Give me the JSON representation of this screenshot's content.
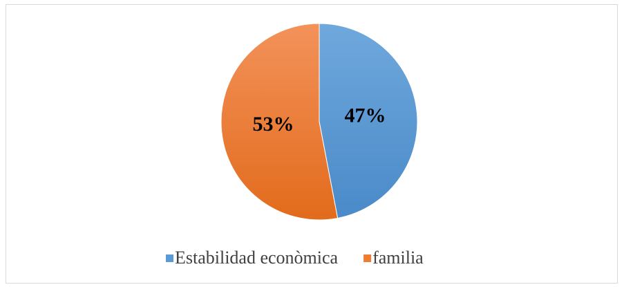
{
  "chart_data": {
    "type": "pie",
    "categories": [
      "Estabilidad econòmica",
      "familia"
    ],
    "values": [
      47,
      53
    ],
    "value_labels": [
      "47%",
      "53%"
    ],
    "colors": [
      "#5b9bd5",
      "#ed7d31"
    ],
    "legend": "bottom"
  }
}
